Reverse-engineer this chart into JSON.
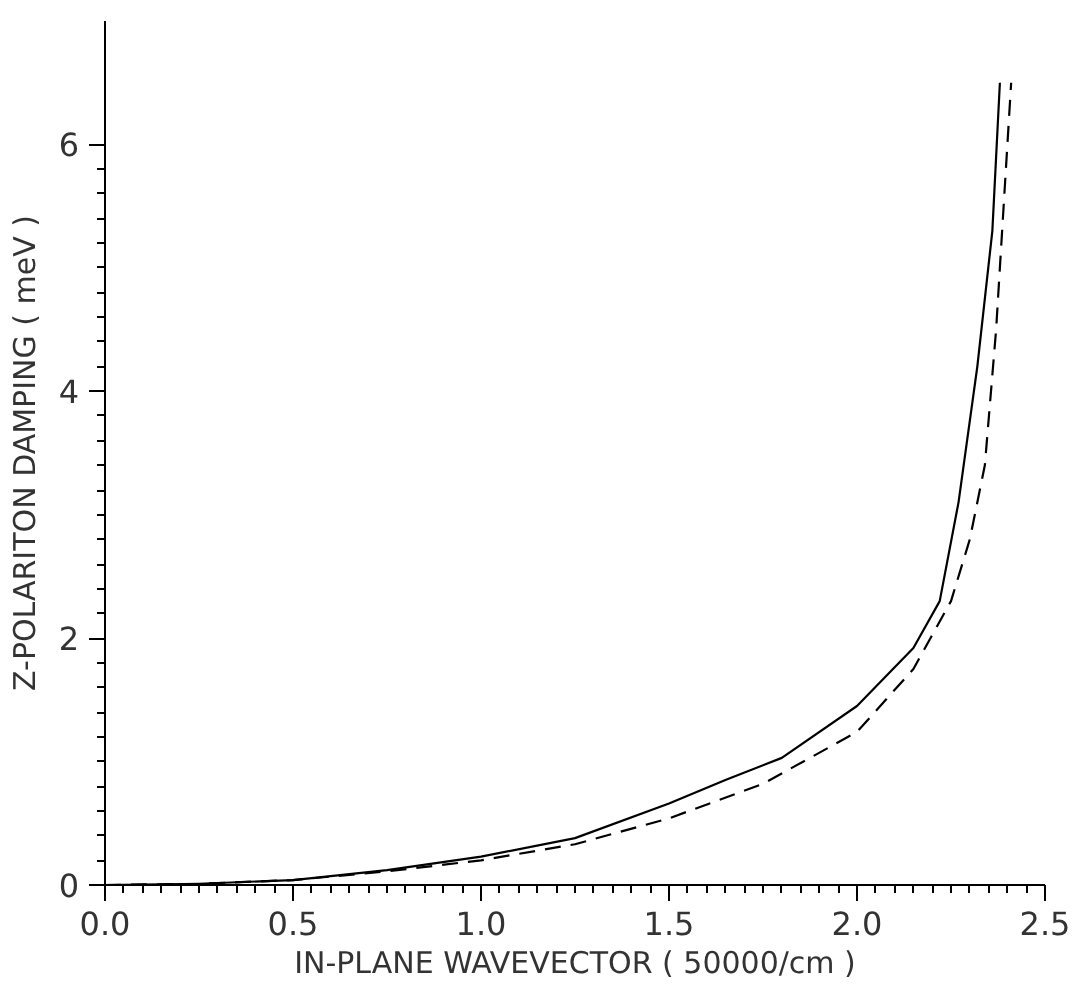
{
  "chart_data": {
    "type": "line",
    "xlabel": "IN-PLANE WAVEVECTOR ( 50000/cm )",
    "ylabel": "Z-POLARITON DAMPING ( meV )",
    "xlim": [
      0,
      2.5
    ],
    "ylim": [
      0,
      7
    ],
    "xticks": [
      {
        "value": 0,
        "label": "0.0"
      },
      {
        "value": 0.5,
        "label": "0.5"
      },
      {
        "value": 1,
        "label": "1.0"
      },
      {
        "value": 1.5,
        "label": "1.5"
      },
      {
        "value": 2,
        "label": "2.0"
      },
      {
        "value": 2.5,
        "label": "2.5"
      }
    ],
    "yticks": [
      0,
      2,
      4,
      6
    ],
    "grid": false,
    "marker": "none",
    "series": [
      {
        "color": "#000000",
        "line_style": "solid",
        "x": [
          0,
          0.25,
          0.5,
          0.75,
          1.0,
          1.25,
          1.5,
          1.65,
          1.8,
          2.0,
          2.15,
          2.22,
          2.27,
          2.32,
          2.36,
          2.38
        ],
        "values": [
          0,
          0.01,
          0.04,
          0.12,
          0.23,
          0.38,
          0.66,
          0.85,
          1.03,
          1.45,
          1.92,
          2.3,
          3.1,
          4.2,
          5.3,
          6.5
        ]
      },
      {
        "color": "#000000",
        "line_style": "dashed",
        "x": [
          0,
          0.25,
          0.5,
          0.75,
          1.0,
          1.25,
          1.5,
          1.75,
          2.0,
          2.15,
          2.25,
          2.3,
          2.34,
          2.37,
          2.39,
          2.41
        ],
        "values": [
          0,
          0.01,
          0.04,
          0.11,
          0.2,
          0.33,
          0.54,
          0.82,
          1.24,
          1.75,
          2.3,
          2.8,
          3.4,
          4.5,
          5.5,
          6.5
        ]
      }
    ]
  }
}
